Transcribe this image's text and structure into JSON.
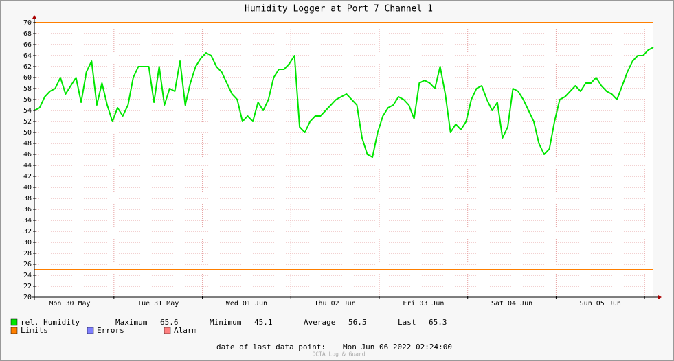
{
  "chart_data": {
    "type": "line",
    "title": "Humidity Logger at Port 7 Channel 1",
    "ylim": [
      20,
      70
    ],
    "yticks": [
      20,
      22,
      24,
      26,
      28,
      30,
      32,
      34,
      36,
      38,
      40,
      42,
      44,
      46,
      48,
      50,
      52,
      54,
      56,
      58,
      60,
      62,
      64,
      66,
      68,
      70
    ],
    "xlim": [
      2.4,
      170.4
    ],
    "xticks": [
      {
        "value": 12,
        "label": "Mon 30 May"
      },
      {
        "value": 36,
        "label": "Tue 31 May"
      },
      {
        "value": 60,
        "label": "Wed 01 Jun"
      },
      {
        "value": 84,
        "label": "Thu 02 Jun"
      },
      {
        "value": 108,
        "label": "Fri 03 Jun"
      },
      {
        "value": 132,
        "label": "Sat 04 Jun"
      },
      {
        "value": 156,
        "label": "Sun 05 Jun"
      }
    ],
    "xgrid": [
      24,
      48,
      72,
      96,
      120,
      144,
      168
    ],
    "grid": true,
    "series": [
      {
        "name": "rel. Humidity",
        "color": "#00e600",
        "values": [
          54,
          54.5,
          56.5,
          57.5,
          58,
          60,
          57,
          58.5,
          60,
          55.5,
          61,
          63,
          55,
          59,
          55,
          52,
          54.5,
          53,
          55,
          60,
          62,
          62,
          62,
          55.5,
          62,
          55,
          58,
          57.5,
          63,
          55,
          59,
          62,
          63.5,
          64.5,
          64,
          62,
          61,
          59,
          57,
          56,
          52,
          53,
          52,
          55.5,
          54,
          56,
          60,
          61.5,
          61.5,
          62.5,
          64,
          51,
          50,
          52,
          53,
          53,
          54,
          55,
          56,
          56.5,
          57,
          56,
          55,
          49,
          46,
          45.5,
          50,
          53,
          54.5,
          55,
          56.5,
          56,
          55,
          52.5,
          59,
          59.5,
          59,
          58,
          62,
          57,
          50,
          51.5,
          50.5,
          52,
          56,
          58,
          58.5,
          56,
          54,
          55.5,
          49,
          51,
          58,
          57.5,
          56,
          54,
          52,
          48,
          46,
          47,
          52,
          56,
          56.5,
          57.5,
          58.5,
          57.5,
          59,
          59,
          60,
          58.5,
          57.5,
          57,
          56,
          58.5,
          61,
          63,
          64,
          64,
          65,
          65.5
        ]
      }
    ],
    "limits": {
      "name": "Limits",
      "color": "#ff7f00",
      "values": [
        70,
        25
      ]
    },
    "legend_extra": [
      {
        "name": "Errors",
        "color": "#7f7fff"
      },
      {
        "name": "Alarm",
        "color": "#ff7f7f"
      }
    ],
    "stats": [
      {
        "label": "Maximum",
        "value": 65.6
      },
      {
        "label": "Minimum",
        "value": 45.1
      },
      {
        "label": "Average",
        "value": 56.5
      },
      {
        "label": "Last",
        "value": 65.3
      }
    ],
    "footer": {
      "label": "date of last data point:",
      "value": "Mon Jun 06 2022 02:24:00"
    },
    "watermark": "OCTA Log & Guard"
  }
}
